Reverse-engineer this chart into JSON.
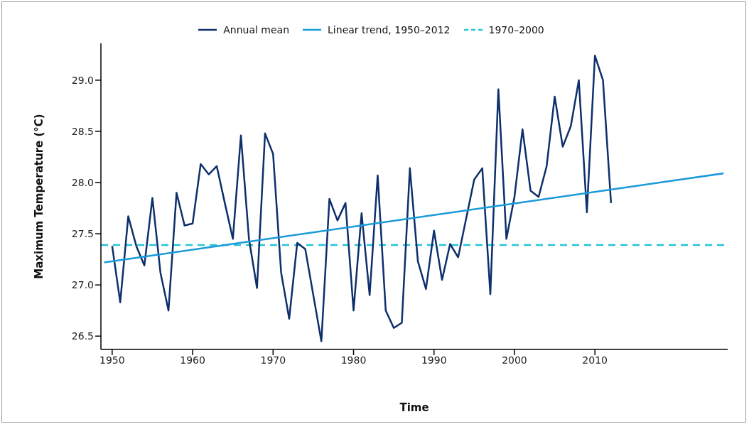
{
  "chart_data": {
    "type": "line",
    "xlabel": "Time",
    "ylabel": "Maximum Temperature (°C)",
    "xlim": [
      1948.6,
      2026.5
    ],
    "ylim": [
      26.37,
      29.36
    ],
    "xticks": [
      1950,
      1960,
      1970,
      1980,
      1990,
      2000,
      2010
    ],
    "yticks": [
      26.5,
      {
        "value": 27,
        "label": "27.0"
      },
      27.5,
      {
        "value": 28,
        "label": "28.0"
      },
      28.5,
      {
        "value": 29,
        "label": "29.0"
      }
    ],
    "grid": false,
    "legend": "top",
    "marker": "none",
    "x": [
      1950,
      1951,
      1952,
      1953,
      1954,
      1955,
      1956,
      1957,
      1958,
      1959,
      1960,
      1961,
      1962,
      1963,
      1964,
      1965,
      1966,
      1967,
      1968,
      1969,
      1970,
      1971,
      1972,
      1973,
      1974,
      1975,
      1976,
      1977,
      1978,
      1979,
      1980,
      1981,
      1982,
      1983,
      1984,
      1985,
      1986,
      1987,
      1988,
      1989,
      1990,
      1991,
      1992,
      1993,
      1994,
      1995,
      1996,
      1997,
      1998,
      1999,
      2000,
      2001,
      2002,
      2003,
      2004,
      2005,
      2006,
      2007,
      2008,
      2009,
      2010,
      2011,
      2012
    ],
    "series": [
      {
        "name": "Annual mean",
        "color": "#0d2f6b",
        "line_style": "solid",
        "values": [
          27.38,
          26.83,
          27.67,
          27.38,
          27.19,
          27.85,
          27.12,
          26.75,
          27.9,
          27.58,
          27.6,
          28.18,
          28.08,
          28.16,
          27.8,
          27.45,
          28.46,
          27.45,
          26.97,
          28.48,
          28.28,
          27.12,
          26.67,
          27.41,
          27.35,
          26.9,
          26.45,
          27.84,
          27.63,
          27.8,
          26.75,
          27.7,
          26.9,
          28.07,
          26.75,
          26.58,
          26.63,
          28.14,
          27.23,
          26.96,
          27.53,
          27.05,
          27.4,
          27.27,
          27.65,
          28.03,
          28.14,
          26.91,
          28.91,
          27.45,
          27.86,
          28.52,
          27.92,
          27.86,
          28.16,
          28.84,
          28.35,
          28.55,
          29.0,
          27.71,
          29.24,
          29.0,
          27.8
        ]
      },
      {
        "name": "Linear trend, 1950–2012",
        "color": "#1a9ad9",
        "line_style": "solid",
        "x": [
          1949,
          2026
        ],
        "values": [
          27.22,
          28.09
        ]
      }
    ],
    "ref_lines": [
      {
        "axis": "y",
        "value": 27.39,
        "label": "1970–2000",
        "color": "#26c3d9",
        "line_style": "dashed"
      }
    ]
  }
}
